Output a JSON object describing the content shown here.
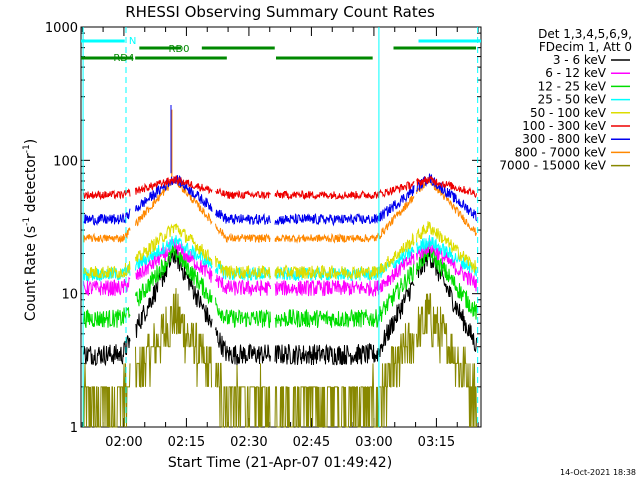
{
  "chart_data": {
    "type": "line",
    "title": "RHESSI Observing Summary Count Rates",
    "xlabel": "Start Time (21-Apr-07 01:49:42)",
    "ylabel_main": "Count Rate (s",
    "ylabel_sup": "-1",
    "ylabel_tail": " detector",
    "ylabel_sup2": "-1",
    "ylabel_end": ")",
    "y_scale": "log",
    "ylim": [
      1,
      1000
    ],
    "xlim_minutes": [
      0,
      96
    ],
    "x_ticks": [
      {
        "label": "02:00",
        "min": 10.3
      },
      {
        "label": "02:15",
        "min": 25.3
      },
      {
        "label": "02:30",
        "min": 40.3
      },
      {
        "label": "02:45",
        "min": 55.3
      },
      {
        "label": "03:00",
        "min": 70.3
      },
      {
        "label": "03:15",
        "min": 85.3
      }
    ],
    "y_ticks": [
      {
        "label": "1",
        "value": 1
      },
      {
        "label": "10",
        "value": 10
      },
      {
        "label": "100",
        "value": 100
      },
      {
        "label": "1000",
        "value": 1000
      }
    ],
    "legend_header": [
      "Det 1,3,4,5,6,9,",
      "FDecim 1, Att 0"
    ],
    "series": [
      {
        "name": "3 - 6 keV",
        "color": "#000000",
        "base": 3.5,
        "peak": 20,
        "noise": 0.08
      },
      {
        "name": "6 - 12 keV",
        "color": "#ff00ff",
        "base": 11,
        "peak": 23,
        "noise": 0.06
      },
      {
        "name": "12 - 25 keV",
        "color": "#00dd00",
        "base": 6.5,
        "peak": 21,
        "noise": 0.07
      },
      {
        "name": "25 - 50 keV",
        "color": "#00ffff",
        "base": 14,
        "peak": 25,
        "noise": 0.05
      },
      {
        "name": "50 - 100 keV",
        "color": "#dddd00",
        "base": 14.5,
        "peak": 32,
        "noise": 0.05
      },
      {
        "name": "100 - 300 keV",
        "color": "#ee0000",
        "base": 55,
        "peak": 72,
        "noise": 0.03
      },
      {
        "name": "300 - 800 keV",
        "color": "#0000ee",
        "base": 36,
        "peak": 74,
        "noise": 0.04
      },
      {
        "name": "800 - 7000 keV",
        "color": "#ff8800",
        "base": 26,
        "peak": 72,
        "noise": 0.03
      },
      {
        "name": "7000 - 15000 keV",
        "color": "#888800",
        "base": 1.6,
        "peak": 7,
        "noise": 0.2
      }
    ],
    "peaks_minutes": [
      22.5,
      83.5
    ],
    "gaps_minutes": [
      [
        11.8,
        13.0
      ],
      [
        31.5,
        32.2
      ],
      [
        45.5,
        46.5
      ],
      [
        80.0,
        80.5
      ]
    ],
    "annotations": [
      {
        "label": "N",
        "color": "#00ffff",
        "segments": [
          [
            0,
            10.5
          ],
          [
            81,
            96
          ]
        ],
        "level": "top"
      },
      {
        "label": "RD0",
        "color": "#008800",
        "segments": [
          [
            14,
            24
          ],
          [
            29,
            46.5
          ],
          [
            75,
            94.8
          ]
        ],
        "level": "middle"
      },
      {
        "label": "RD4",
        "color": "#008800",
        "segments": [
          [
            0,
            12.5
          ],
          [
            13,
            35
          ],
          [
            46.8,
            70
          ]
        ],
        "level": "bottom"
      }
    ],
    "vlines": [
      {
        "min": 0.5,
        "style": "solid"
      },
      {
        "min": 10.8,
        "style": "dashed"
      },
      {
        "min": 71.5,
        "style": "solid"
      },
      {
        "min": 95.2,
        "style": "dashed"
      }
    ]
  },
  "footer": {
    "timestamp": "14-Oct-2021 18:38"
  }
}
